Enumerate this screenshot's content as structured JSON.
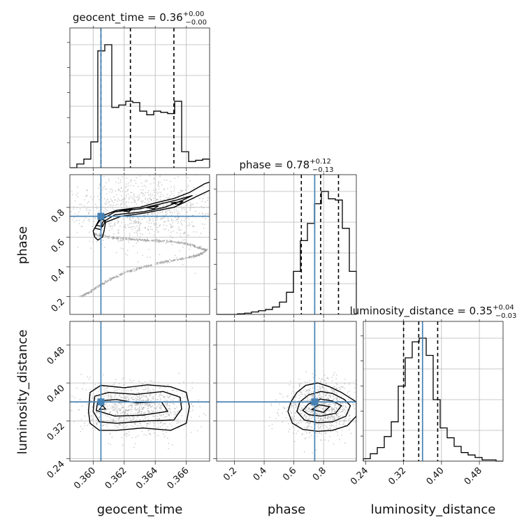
{
  "chart_data": {
    "type": "corner",
    "parameters": [
      {
        "name": "geocent_time",
        "label": "geocent_time",
        "title_prefix": "geocent_time = 0.36",
        "title_sup": "+0.00",
        "title_sub": "−0.00",
        "range": [
          0.3585,
          0.3675
        ],
        "ticks": [
          0.36,
          0.362,
          0.364,
          0.366
        ],
        "tick_labels": [
          "0.360",
          "0.362",
          "0.364",
          "0.366"
        ],
        "truth": 0.3605,
        "quantiles": [
          0.3605,
          0.3624,
          0.3652
        ],
        "histogram": {
          "edges": [
            0.3585,
            0.35895,
            0.3594,
            0.35985,
            0.3603,
            0.36075,
            0.3612,
            0.36165,
            0.3621,
            0.36255,
            0.363,
            0.36345,
            0.3639,
            0.36435,
            0.3648,
            0.36525,
            0.3657,
            0.36615,
            0.3666,
            0.36705,
            0.3675
          ],
          "counts": [
            0.0,
            0.03,
            0.07,
            0.21,
            0.95,
            1.0,
            0.49,
            0.51,
            0.54,
            0.53,
            0.46,
            0.43,
            0.46,
            0.45,
            0.44,
            0.54,
            0.13,
            0.05,
            0.06,
            0.07
          ]
        }
      },
      {
        "name": "phase",
        "label": "phase",
        "title_prefix": "phase = 0.78",
        "title_sup": "+0.12",
        "title_sub": "−0.13",
        "range": [
          0.08,
          1.02
        ],
        "ticks_y": [
          0.2,
          0.4,
          0.6,
          0.8
        ],
        "tick_labels_y": [
          "0.2",
          "0.4",
          "0.6",
          "0.8"
        ],
        "ticks_x": [
          0.2,
          0.4,
          0.6,
          0.8
        ],
        "tick_labels_x": [
          "0.2",
          "0.4",
          "0.6",
          "0.8"
        ],
        "truth": 0.74,
        "quantiles": [
          0.65,
          0.78,
          0.9
        ],
        "histogram": {
          "edges": [
            0.08,
            0.127,
            0.174,
            0.221,
            0.268,
            0.315,
            0.362,
            0.409,
            0.456,
            0.503,
            0.55,
            0.597,
            0.644,
            0.691,
            0.738,
            0.785,
            0.832,
            0.879,
            0.926,
            0.973,
            1.02
          ],
          "counts": [
            0.0,
            0.0,
            0.0,
            0.005,
            0.01,
            0.02,
            0.03,
            0.04,
            0.06,
            0.1,
            0.18,
            0.35,
            0.6,
            0.74,
            0.9,
            1.0,
            0.94,
            0.93,
            0.7,
            0.35
          ]
        }
      },
      {
        "name": "luminosity_distance",
        "label": "luminosity_distance",
        "title_prefix": "luminosity_distance = 0.35",
        "title_sup": "+0.04",
        "title_sub": "−0.03",
        "range": [
          0.235,
          0.53
        ],
        "ticks": [
          0.24,
          0.32,
          0.4,
          0.48
        ],
        "tick_labels": [
          "0.24",
          "0.32",
          "0.40",
          "0.48"
        ],
        "truth": 0.36,
        "quantiles": [
          0.32,
          0.352,
          0.392
        ],
        "histogram": {
          "edges": [
            0.235,
            0.24975,
            0.2645,
            0.27925,
            0.294,
            0.30875,
            0.3235,
            0.33825,
            0.353,
            0.36775,
            0.3825,
            0.39725,
            0.412,
            0.42675,
            0.4415,
            0.45625,
            0.471,
            0.48575,
            0.5005,
            0.51525,
            0.53
          ],
          "counts": [
            0.02,
            0.06,
            0.11,
            0.2,
            0.32,
            0.61,
            0.84,
            0.97,
            1.0,
            0.86,
            0.5,
            0.27,
            0.19,
            0.12,
            0.07,
            0.05,
            0.03,
            0.01,
            0.01,
            0.0
          ]
        }
      }
    ],
    "pairs": [
      {
        "x": "geocent_time",
        "y": "phase",
        "contours": [
          [
            [
              0.36,
              0.64
            ],
            [
              0.3603,
              0.7
            ],
            [
              0.3605,
              0.74
            ],
            [
              0.3615,
              0.78
            ],
            [
              0.363,
              0.8
            ],
            [
              0.364,
              0.83
            ],
            [
              0.3652,
              0.86
            ],
            [
              0.3662,
              0.9
            ],
            [
              0.3672,
              0.96
            ],
            [
              0.3678,
              0.98
            ],
            [
              0.3676,
              0.92
            ],
            [
              0.3668,
              0.88
            ],
            [
              0.366,
              0.84
            ],
            [
              0.3652,
              0.8
            ],
            [
              0.3642,
              0.78
            ],
            [
              0.3632,
              0.76
            ],
            [
              0.3618,
              0.74
            ],
            [
              0.3608,
              0.7
            ],
            [
              0.3607,
              0.64
            ],
            [
              0.3606,
              0.6
            ],
            [
              0.3603,
              0.58
            ],
            [
              0.3601,
              0.6
            ]
          ],
          [
            [
              0.3601,
              0.66
            ],
            [
              0.3604,
              0.71
            ],
            [
              0.3614,
              0.77
            ],
            [
              0.363,
              0.79
            ],
            [
              0.3642,
              0.82
            ],
            [
              0.3654,
              0.85
            ],
            [
              0.3664,
              0.88
            ],
            [
              0.3658,
              0.85
            ],
            [
              0.3646,
              0.8
            ],
            [
              0.3632,
              0.77
            ],
            [
              0.3614,
              0.75
            ],
            [
              0.3606,
              0.7
            ],
            [
              0.3605,
              0.65
            ]
          ],
          [
            [
              0.3602,
              0.68
            ],
            [
              0.3605,
              0.72
            ],
            [
              0.3608,
              0.71
            ],
            [
              0.3606,
              0.67
            ]
          ],
          [
            [
              0.3617,
              0.78
            ],
            [
              0.3625,
              0.79
            ],
            [
              0.3623,
              0.77
            ]
          ],
          [
            [
              0.3634,
              0.8
            ],
            [
              0.3642,
              0.81
            ],
            [
              0.3639,
              0.79
            ]
          ],
          [
            [
              0.365,
              0.83
            ],
            [
              0.3658,
              0.84
            ],
            [
              0.3655,
              0.82
            ]
          ]
        ],
        "sample_curve": [
          [
            0.36,
            0.62
          ],
          [
            0.361,
            0.6
          ],
          [
            0.362,
            0.59
          ],
          [
            0.363,
            0.58
          ],
          [
            0.364,
            0.575
          ],
          [
            0.365,
            0.57
          ],
          [
            0.366,
            0.555
          ],
          [
            0.3668,
            0.53
          ],
          [
            0.3673,
            0.51
          ],
          [
            0.3668,
            0.48
          ],
          [
            0.366,
            0.46
          ],
          [
            0.365,
            0.44
          ],
          [
            0.364,
            0.42
          ],
          [
            0.363,
            0.39
          ],
          [
            0.362,
            0.36
          ],
          [
            0.3612,
            0.32
          ],
          [
            0.3605,
            0.28
          ],
          [
            0.3598,
            0.23
          ],
          [
            0.3592,
            0.2
          ]
        ]
      },
      {
        "x": "geocent_time",
        "y": "luminosity_distance",
        "contours": [
          [
            [
              0.3597,
              0.34
            ],
            [
              0.3598,
              0.38
            ],
            [
              0.3605,
              0.395
            ],
            [
              0.362,
              0.39
            ],
            [
              0.3635,
              0.396
            ],
            [
              0.365,
              0.392
            ],
            [
              0.366,
              0.38
            ],
            [
              0.3662,
              0.35
            ],
            [
              0.366,
              0.315
            ],
            [
              0.365,
              0.3
            ],
            [
              0.3632,
              0.305
            ],
            [
              0.3615,
              0.3
            ],
            [
              0.3604,
              0.3
            ],
            [
              0.3598,
              0.315
            ]
          ],
          [
            [
              0.36,
              0.34
            ],
            [
              0.3601,
              0.372
            ],
            [
              0.361,
              0.38
            ],
            [
              0.3628,
              0.376
            ],
            [
              0.3645,
              0.382
            ],
            [
              0.3656,
              0.37
            ],
            [
              0.3657,
              0.345
            ],
            [
              0.3652,
              0.322
            ],
            [
              0.3635,
              0.32
            ],
            [
              0.3615,
              0.315
            ],
            [
              0.3604,
              0.318
            ]
          ],
          [
            [
              0.3602,
              0.342
            ],
            [
              0.3603,
              0.362
            ],
            [
              0.3615,
              0.365
            ],
            [
              0.3628,
              0.358
            ],
            [
              0.3644,
              0.36
            ],
            [
              0.3648,
              0.34
            ],
            [
              0.3632,
              0.332
            ],
            [
              0.3614,
              0.33
            ]
          ],
          [
            [
              0.3604,
              0.344
            ],
            [
              0.3606,
              0.353
            ],
            [
              0.3608,
              0.345
            ]
          ]
        ]
      },
      {
        "x": "phase",
        "y": "luminosity_distance",
        "contours": [
          [
            [
              0.56,
              0.34
            ],
            [
              0.58,
              0.36
            ],
            [
              0.62,
              0.38
            ],
            [
              0.68,
              0.395
            ],
            [
              0.76,
              0.4
            ],
            [
              0.84,
              0.392
            ],
            [
              0.92,
              0.38
            ],
            [
              0.98,
              0.368
            ],
            [
              1.02,
              0.36
            ],
            [
              1.02,
              0.33
            ],
            [
              0.96,
              0.31
            ],
            [
              0.86,
              0.3
            ],
            [
              0.76,
              0.298
            ],
            [
              0.66,
              0.302
            ],
            [
              0.59,
              0.315
            ]
          ],
          [
            [
              0.62,
              0.34
            ],
            [
              0.64,
              0.36
            ],
            [
              0.7,
              0.375
            ],
            [
              0.78,
              0.382
            ],
            [
              0.86,
              0.378
            ],
            [
              0.94,
              0.365
            ],
            [
              0.98,
              0.352
            ],
            [
              0.95,
              0.33
            ],
            [
              0.86,
              0.318
            ],
            [
              0.76,
              0.316
            ],
            [
              0.67,
              0.322
            ]
          ],
          [
            [
              0.66,
              0.342
            ],
            [
              0.7,
              0.356
            ],
            [
              0.78,
              0.366
            ],
            [
              0.86,
              0.362
            ],
            [
              0.92,
              0.352
            ],
            [
              0.88,
              0.336
            ],
            [
              0.78,
              0.33
            ],
            [
              0.7,
              0.333
            ]
          ],
          [
            [
              0.72,
              0.344
            ],
            [
              0.77,
              0.354
            ],
            [
              0.84,
              0.35
            ],
            [
              0.8,
              0.338
            ]
          ]
        ]
      }
    ],
    "truth_color": "#4682b4",
    "quantile_style": "dashed",
    "grid": true
  }
}
